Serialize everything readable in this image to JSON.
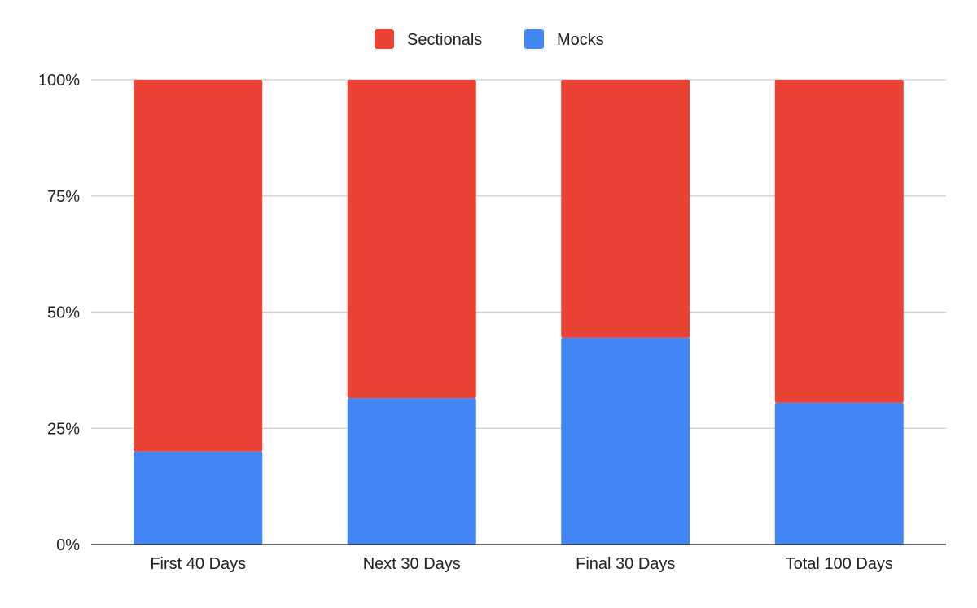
{
  "chart_data": {
    "type": "bar",
    "stacked": "percent",
    "categories": [
      "First 40 Days",
      "Next 30 Days",
      "Final 30 Days",
      "Total 100 Days"
    ],
    "series": [
      {
        "name": "Mocks",
        "values": [
          20,
          31.5,
          44.5,
          30.5
        ]
      },
      {
        "name": "Sectionals",
        "values": [
          80,
          68.5,
          55.5,
          69.5
        ]
      }
    ],
    "legend_order": [
      "Sectionals",
      "Mocks"
    ],
    "ylim": [
      0,
      100
    ],
    "yticks": [
      "0%",
      "25%",
      "50%",
      "75%",
      "100%"
    ],
    "ytick_values": [
      0,
      25,
      50,
      75,
      100
    ],
    "title": "",
    "xlabel": "",
    "ylabel": "",
    "grid": true,
    "legend_position": "top-center",
    "colors": {
      "Sectionals": "#ea4335",
      "Mocks": "#4285f4",
      "grid": "#cccccc",
      "axis": "#333333"
    }
  }
}
